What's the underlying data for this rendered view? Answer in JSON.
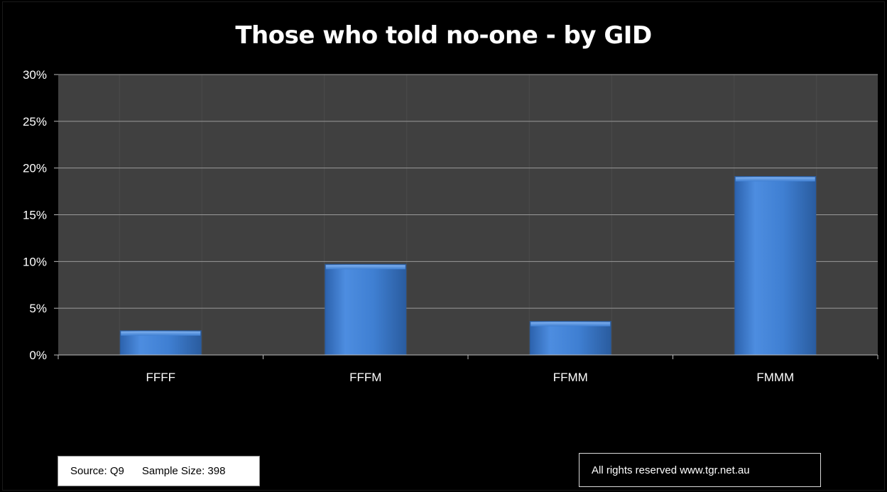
{
  "chart_data": {
    "type": "bar",
    "title": "Those who told no-one -  by GID",
    "categories": [
      "FFFF",
      "FFFM",
      "FFMM",
      "FMMM"
    ],
    "values": [
      2.6,
      9.7,
      3.6,
      19.1
    ],
    "value_format": "percent",
    "xlabel": "",
    "ylabel": "",
    "ylim": [
      0,
      30
    ],
    "yticks": [
      "0%",
      "5%",
      "10%",
      "15%",
      "20%",
      "25%",
      "30%"
    ],
    "grid": true,
    "legend": "none"
  },
  "footer": {
    "source_label": "Source: Q9",
    "sample_label": "Sample Size: 398",
    "rights_label": "All rights reserved www.tgr.net.au"
  },
  "colors": {
    "background": "#000000",
    "plot_area": "#404040",
    "bar": "#3f7fd2",
    "gridline": "#9a9a9a"
  }
}
